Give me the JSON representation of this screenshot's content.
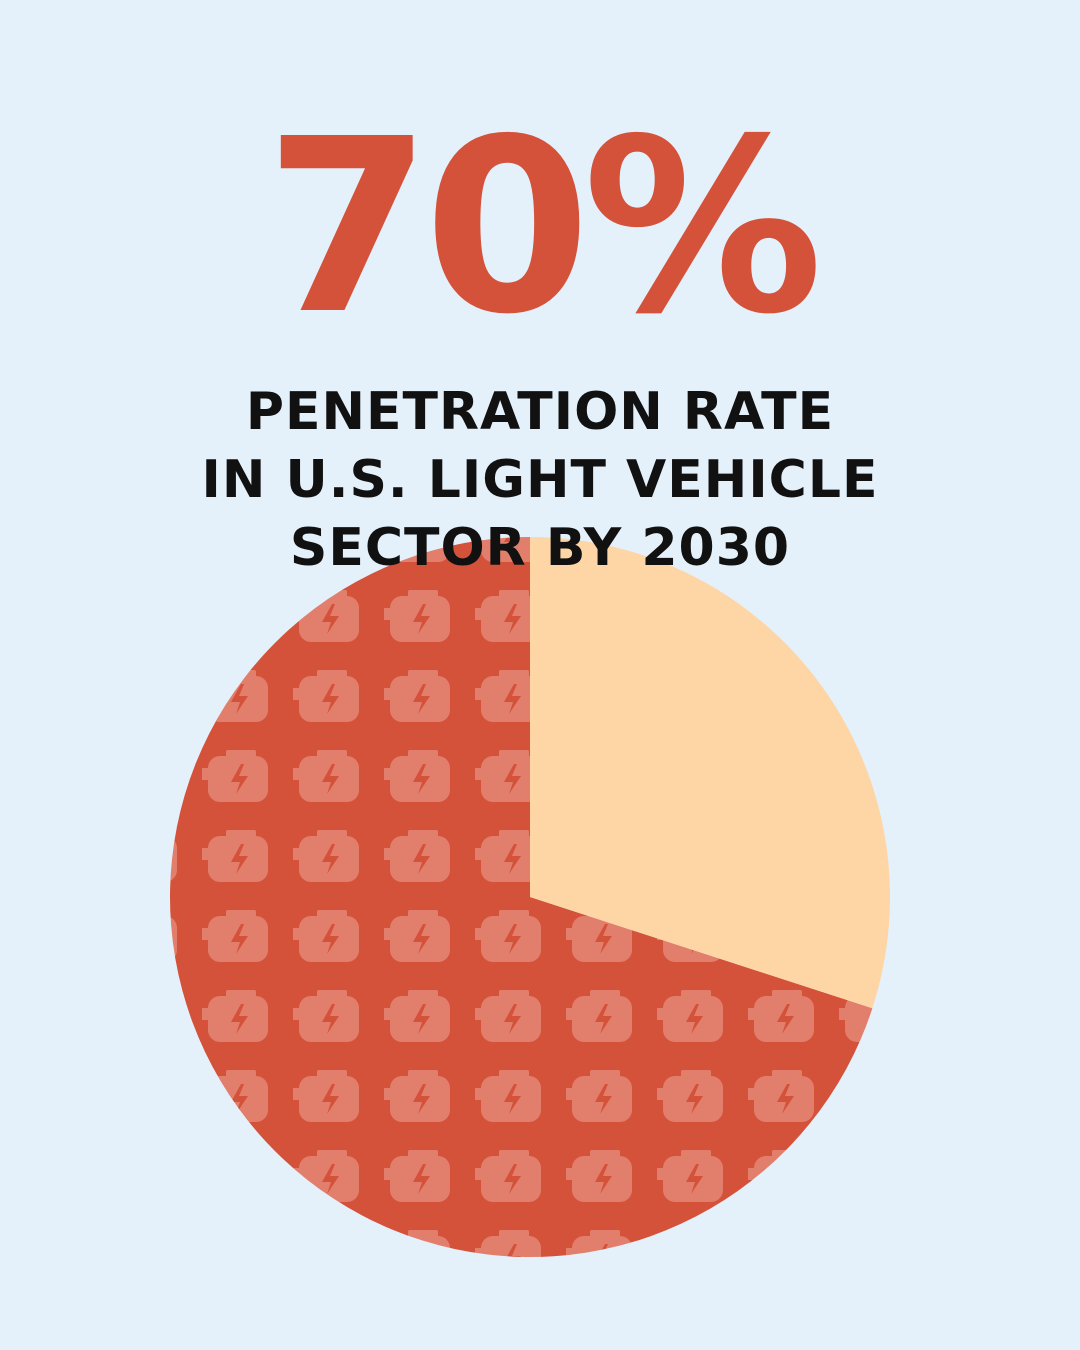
{
  "chart_data": {
    "type": "pie",
    "values": [
      70,
      30
    ],
    "value_labels": [
      "70%",
      null
    ],
    "colors": [
      "#d4513a",
      "#fed6a6"
    ],
    "subtitle": "PENETRATION RATE\nIN U.S. LIGHT VEHICLE\nSECTOR BY 2030"
  }
}
